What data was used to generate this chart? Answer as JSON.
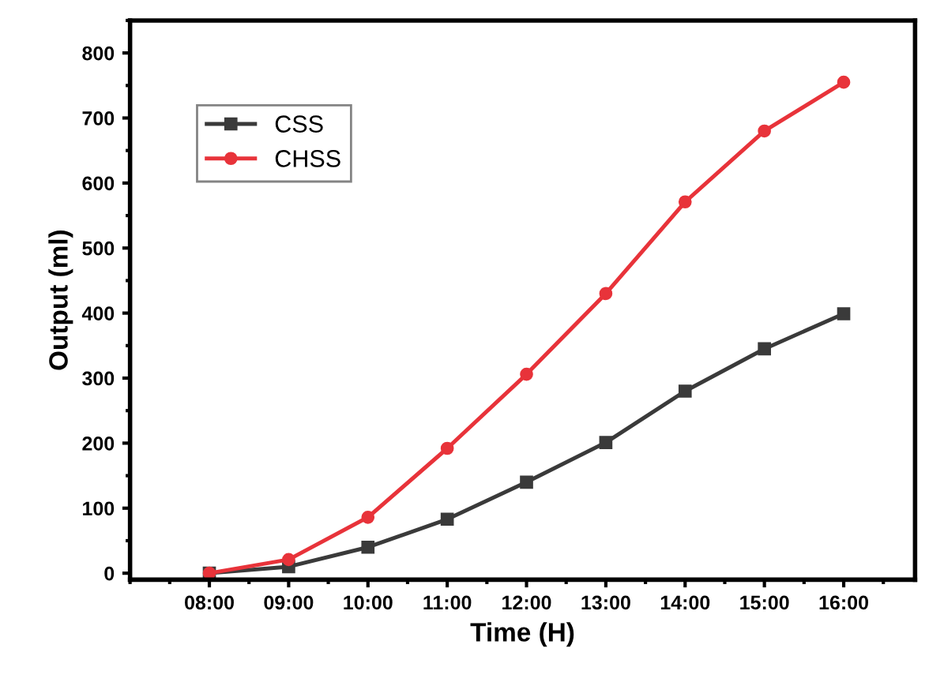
{
  "chart_data": {
    "type": "line",
    "xlabel": "Time (H)",
    "ylabel": "Output (ml)",
    "x": [
      8,
      9,
      10,
      11,
      12,
      13,
      14,
      15,
      16
    ],
    "series": [
      {
        "name": "CSS",
        "color": "#3a3a3a",
        "marker": "square",
        "values": [
          0,
          10,
          40,
          83,
          140,
          201,
          280,
          345,
          399
        ]
      },
      {
        "name": "CHSS",
        "color": "#e8333a",
        "marker": "circle",
        "values": [
          0,
          21,
          86,
          192,
          306,
          430,
          571,
          680,
          755
        ]
      }
    ],
    "xlim": [
      7,
      16.9
    ],
    "ylim": [
      -10,
      850
    ],
    "xticks": [
      {
        "value": 8,
        "label": "08:00"
      },
      {
        "value": 9,
        "label": "09:00"
      },
      {
        "value": 10,
        "label": "10:00"
      },
      {
        "value": 11,
        "label": "11:00"
      },
      {
        "value": 12,
        "label": "12:00"
      },
      {
        "value": 13,
        "label": "13:00"
      },
      {
        "value": 14,
        "label": "14:00"
      },
      {
        "value": 15,
        "label": "15:00"
      },
      {
        "value": 16,
        "label": "16:00"
      }
    ],
    "yticks": [
      0,
      100,
      200,
      300,
      400,
      500,
      600,
      700,
      800
    ],
    "grid": false,
    "legend": "top left",
    "line_style": "solid"
  }
}
